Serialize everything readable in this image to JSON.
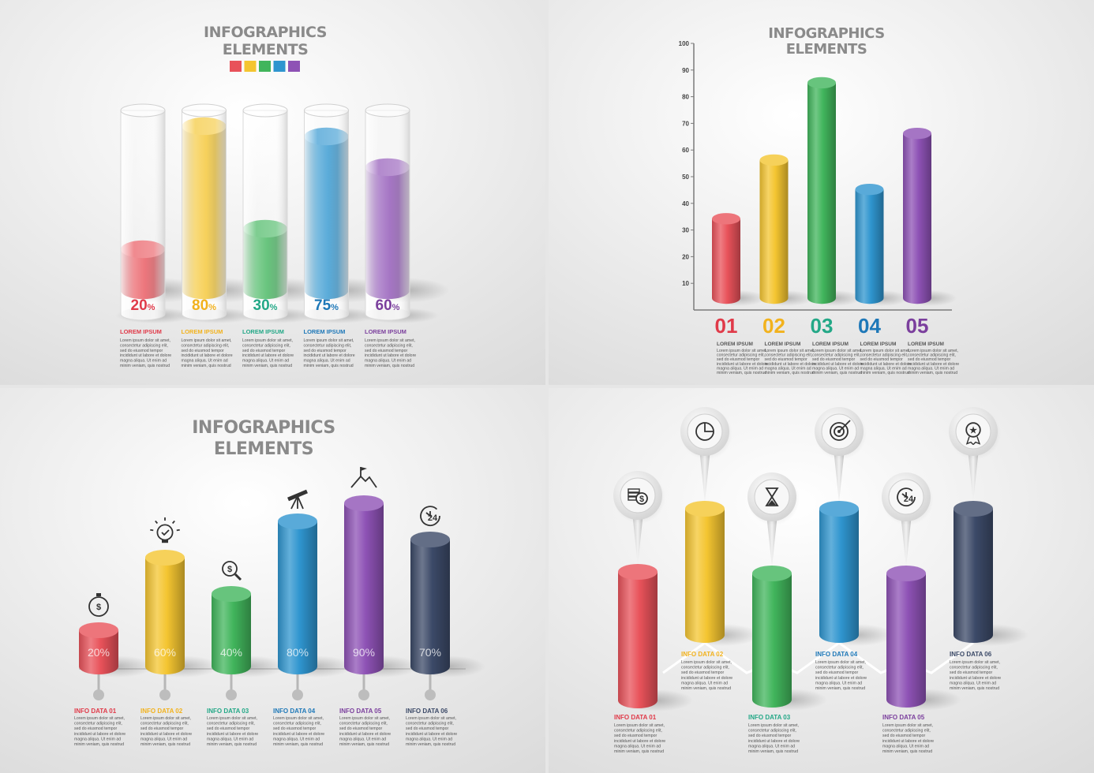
{
  "colors": {
    "red": "#e8525a",
    "yellow": "#f4c531",
    "green": "#41b55c",
    "blue": "#2f95cf",
    "purple": "#8e52b5",
    "navy": "#3c4a68",
    "red_text": "#e03a49",
    "yellow_text": "#f2b21d",
    "green_text": "#23a887",
    "blue_text": "#1e78b8",
    "purple_text": "#7b3f9d"
  },
  "lorem_lines": [
    "Lorem ipsum dolor sit amet,",
    "consectetur adipiscing elit,",
    "sed do eiusmod tempor",
    "incididunt ut labore et dolore",
    "magna aliqua. Ut enim ad",
    "minim veniam, quis nostrud"
  ],
  "chart_data": [
    {
      "type": "bar",
      "title": [
        "INFOGRAPHICS",
        "ELEMENTS"
      ],
      "categories": [
        "20%",
        "80%",
        "30%",
        "75%",
        "60%"
      ],
      "values": [
        20,
        80,
        30,
        75,
        60
      ],
      "ylim": [
        0,
        100
      ],
      "value_labels": [
        {
          "num": "20",
          "unit": "%"
        },
        {
          "num": "80",
          "unit": "%"
        },
        {
          "num": "30",
          "unit": "%"
        },
        {
          "num": "75",
          "unit": "%"
        },
        {
          "num": "60",
          "unit": "%"
        }
      ],
      "captions": [
        "LOREM IPSUM",
        "LOREM IPSUM",
        "LOREM IPSUM",
        "LOREM IPSUM",
        "LOREM IPSUM"
      ],
      "series_colors": [
        "red",
        "yellow",
        "green",
        "blue",
        "purple"
      ],
      "legend_colors": [
        "red",
        "yellow",
        "green",
        "blue",
        "purple"
      ],
      "legend_placement": "top-center"
    },
    {
      "type": "bar",
      "title": [
        "INFOGRAPHICS",
        "ELEMENTS"
      ],
      "categories": [
        "01",
        "02",
        "03",
        "04",
        "05"
      ],
      "values": [
        36,
        58,
        87,
        47,
        68
      ],
      "ylim": [
        0,
        100
      ],
      "yticks": [
        "10",
        "20",
        "30",
        "40",
        "50",
        "60",
        "70",
        "80",
        "90",
        "100"
      ],
      "captions": [
        "LOREM IPSUM",
        "LOREM IPSUM",
        "LOREM IPSUM",
        "LOREM IPSUM",
        "LOREM IPSUM"
      ],
      "series_colors": [
        "red",
        "yellow",
        "green",
        "blue",
        "purple"
      ]
    },
    {
      "type": "bar",
      "title": [
        "INFOGRAPHICS",
        "ELEMENTS"
      ],
      "categories": [
        "INFO DATA 01",
        "INFO DATA 02",
        "INFO DATA 03",
        "INFO DATA 04",
        "INFO DATA 05",
        "INFO DATA 06"
      ],
      "values": [
        20,
        60,
        40,
        80,
        90,
        70
      ],
      "ylim": [
        0,
        100
      ],
      "value_labels": [
        "20%",
        "60%",
        "40%",
        "80%",
        "90%",
        "70%"
      ],
      "icons": [
        "stopwatch-dollar-icon",
        "lightbulb-check-icon",
        "magnifier-dollar-icon",
        "telescope-icon",
        "mountain-flag-icon",
        "clock-24-icon"
      ],
      "icon_texts": [
        "$",
        "",
        "$",
        "",
        "",
        "24"
      ],
      "series_colors": [
        "red",
        "yellow",
        "green",
        "blue",
        "purple",
        "navy"
      ]
    },
    {
      "type": "bar",
      "categories": [
        "INFO DATA 01",
        "INFO DATA 02",
        "INFO DATA 03",
        "INFO DATA 04",
        "INFO DATA 05",
        "INFO DATA 06"
      ],
      "icons": [
        "coins-dollar-icon",
        "pie-chart-icon",
        "hourglass-icon",
        "target-icon",
        "clock-24-icon",
        "award-star-icon"
      ],
      "icon_texts": [
        "$",
        "",
        "",
        "",
        "24",
        "★"
      ],
      "series_colors": [
        "red",
        "yellow",
        "green",
        "blue",
        "purple",
        "navy"
      ]
    }
  ]
}
